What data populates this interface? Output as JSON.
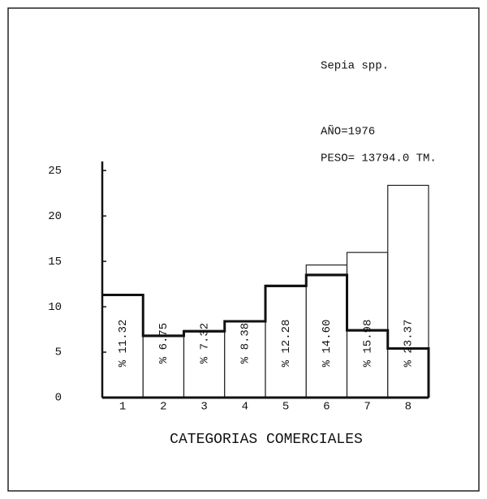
{
  "chart_data": {
    "type": "bar",
    "annotations": [
      "Sepia spp.",
      "AÑO=1976",
      "PESO= 13794.0 TM."
    ],
    "xlabel": "CATEGORIAS COMERCIALES",
    "categories": [
      "1",
      "2",
      "3",
      "4",
      "5",
      "6",
      "7",
      "8"
    ],
    "series": [
      {
        "values": [
          11.32,
          6.75,
          7.32,
          8.38,
          12.28,
          14.6,
          15.98,
          23.37
        ],
        "value_labels": [
          "% 11.32",
          "% 6.75",
          "% 7.32",
          "% 8.38",
          "% 12.28",
          "% 14.60",
          "% 15.98",
          "% 23.37"
        ],
        "color": "#ffffff"
      },
      {
        "values": [
          11.3,
          6.8,
          7.3,
          8.4,
          12.3,
          13.5,
          7.4,
          5.4
        ],
        "color": "#111111"
      }
    ],
    "ylim": [
      0,
      26
    ],
    "yticks": [
      0,
      5,
      10,
      15,
      20,
      25
    ],
    "grid": false
  }
}
